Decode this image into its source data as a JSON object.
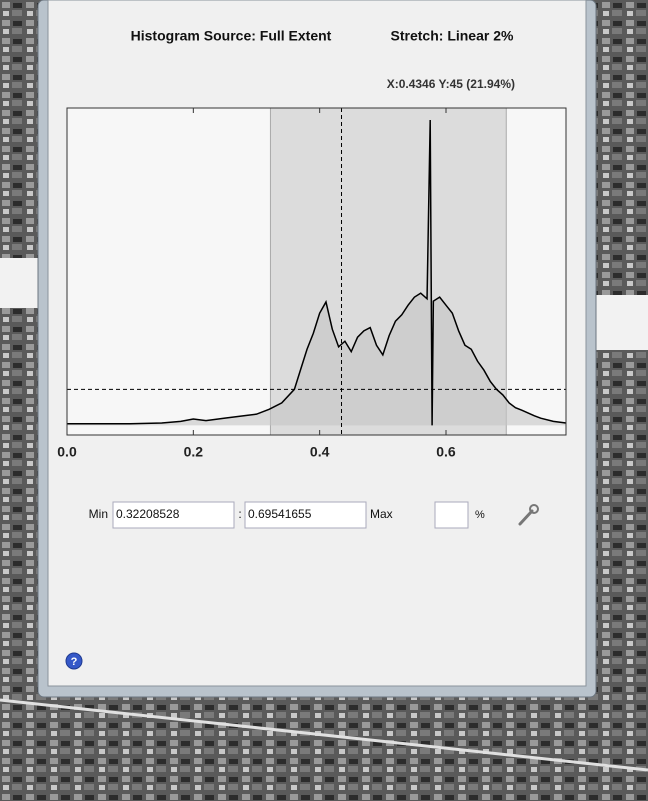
{
  "chart_data": {
    "type": "line",
    "title": "Histogram Source: Full Extent",
    "subtitle": "Stretch: Linear 2%",
    "x": [
      0.0,
      0.05,
      0.1,
      0.15,
      0.18,
      0.2,
      0.22,
      0.25,
      0.28,
      0.3,
      0.32,
      0.34,
      0.36,
      0.37,
      0.38,
      0.39,
      0.4,
      0.41,
      0.42,
      0.43,
      0.44,
      0.45,
      0.46,
      0.47,
      0.48,
      0.49,
      0.5,
      0.51,
      0.52,
      0.53,
      0.54,
      0.55,
      0.56,
      0.57,
      0.575,
      0.578,
      0.58,
      0.59,
      0.6,
      0.61,
      0.62,
      0.63,
      0.64,
      0.65,
      0.66,
      0.67,
      0.68,
      0.69,
      0.7,
      0.71,
      0.72,
      0.74,
      0.75,
      0.77,
      0.79
    ],
    "series": [
      {
        "color": "#000000",
        "values": [
          2,
          2,
          2,
          3,
          5,
          8,
          6,
          9,
          12,
          14,
          20,
          28,
          45,
          70,
          95,
          115,
          140,
          154,
          120,
          98,
          105,
          92,
          110,
          118,
          122,
          100,
          88,
          112,
          130,
          138,
          150,
          160,
          165,
          158,
          381,
          0,
          155,
          160,
          150,
          140,
          118,
          100,
          95,
          80,
          69,
          55,
          45,
          38,
          28,
          22,
          19,
          12,
          9,
          5,
          3
        ]
      }
    ],
    "xlim": [
      0,
      0.79
    ],
    "ylim": [
      -12,
      396
    ],
    "xticks": [
      {
        "value": 0,
        "label": "0.0"
      },
      0.2,
      0.4,
      0.6
    ],
    "stretch": {
      "min": 0.32208528,
      "max": 0.69541655
    },
    "cursor": {
      "x": 0.4346,
      "y": 45,
      "label": "X:0.4346 Y:45 (21.94%)"
    }
  },
  "controls": {
    "min_label": "Min",
    "separator": ":",
    "max_label": "Max",
    "percent_label": "%",
    "help": "?"
  }
}
